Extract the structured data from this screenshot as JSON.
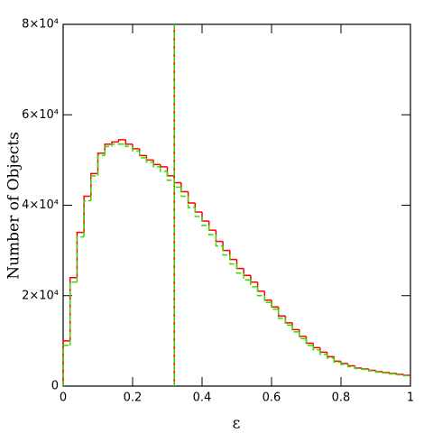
{
  "chart_data": {
    "type": "histogram",
    "y_label": "Number of Objects",
    "x_label": "ε",
    "bins": [
      0,
      0.02,
      0.04,
      0.06,
      0.08,
      0.1,
      0.12,
      0.14,
      0.16,
      0.18,
      0.2,
      0.22,
      0.24,
      0.26,
      0.28,
      0.3,
      0.32,
      0.34,
      0.36,
      0.38,
      0.4,
      0.42,
      0.44,
      0.46,
      0.48,
      0.5,
      0.52,
      0.54,
      0.56,
      0.58,
      0.6,
      0.62,
      0.64,
      0.66,
      0.68,
      0.7,
      0.72,
      0.74,
      0.76,
      0.78,
      0.8,
      0.82,
      0.84,
      0.86,
      0.88,
      0.9,
      0.92,
      0.94,
      0.96,
      0.98,
      1
    ],
    "series": [
      {
        "color": "#ff0000",
        "dashed": false,
        "marker": 0.32,
        "values": [
          10000,
          24000,
          34000,
          42000,
          47000,
          51500,
          53500,
          54000,
          54500,
          53500,
          52500,
          51000,
          50000,
          49000,
          48500,
          46500,
          45000,
          43000,
          40500,
          38500,
          36500,
          34500,
          32000,
          30000,
          28000,
          26000,
          24500,
          23000,
          21000,
          19000,
          17500,
          15500,
          14000,
          12500,
          11000,
          9500,
          8500,
          7500,
          6500,
          5500,
          5000,
          4500,
          4000,
          3800,
          3500,
          3200,
          3000,
          2800,
          2600,
          2400
        ]
      },
      {
        "color": "#33dd00",
        "dashed": true,
        "marker": 0.32,
        "values": [
          9000,
          23000,
          33000,
          41000,
          46500,
          51000,
          53000,
          53500,
          53500,
          53000,
          52000,
          50500,
          49500,
          48500,
          47500,
          45500,
          44000,
          42000,
          39500,
          37500,
          35500,
          33500,
          31000,
          29000,
          27000,
          25000,
          23500,
          22000,
          20000,
          18500,
          17000,
          15000,
          13500,
          12000,
          10500,
          9000,
          8000,
          7000,
          6200,
          5300,
          4800,
          4300,
          3900,
          3700,
          3400,
          3100,
          2900,
          2700,
          2500,
          2300
        ]
      }
    ],
    "xlim": [
      0,
      1
    ],
    "ylim": [
      0,
      80000
    ],
    "xticks": [
      0,
      0.2,
      0.4,
      0.6,
      0.8,
      1
    ],
    "yticks": [
      0,
      {
        "value": 20000,
        "label": "2×10⁴"
      },
      {
        "value": 40000,
        "label": "4×10⁴"
      },
      {
        "value": 60000,
        "label": "6×10⁴"
      },
      {
        "value": 80000,
        "label": "8×10⁴"
      }
    ]
  }
}
